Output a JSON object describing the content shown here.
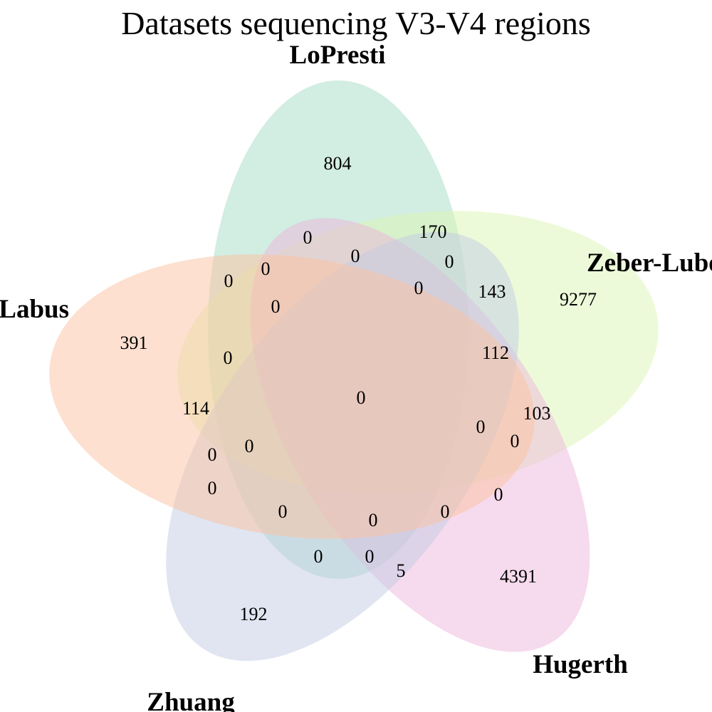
{
  "title": "Datasets sequencing V3-V4 regions",
  "sets": [
    {
      "key": "lopresti",
      "label": "LoPresti",
      "color": "#a6dcc5"
    },
    {
      "key": "zeber",
      "label": "Zeber-Lubecka",
      "color": "#dcf5b3"
    },
    {
      "key": "hugerth",
      "label": "Hugerth",
      "color": "#edb6dc"
    },
    {
      "key": "zhuang",
      "label": "Zhuang",
      "color": "#c2cce4"
    },
    {
      "key": "labus",
      "label": "Labus",
      "color": "#fbc2a0"
    }
  ],
  "counts": [
    {
      "key": "lopresti_only",
      "value": "804"
    },
    {
      "key": "zeber_only",
      "value": "9277"
    },
    {
      "key": "hugerth_only",
      "value": "4391"
    },
    {
      "key": "zhuang_only",
      "value": "192"
    },
    {
      "key": "labus_only",
      "value": "391"
    },
    {
      "key": "r_170",
      "value": "170"
    },
    {
      "key": "r_143",
      "value": "143"
    },
    {
      "key": "r_112",
      "value": "112"
    },
    {
      "key": "r_103",
      "value": "103"
    },
    {
      "key": "r_114",
      "value": "114"
    },
    {
      "key": "r_5",
      "value": "5"
    },
    {
      "key": "center",
      "value": "0"
    },
    {
      "key": "z01",
      "value": "0"
    },
    {
      "key": "z02",
      "value": "0"
    },
    {
      "key": "z03",
      "value": "0"
    },
    {
      "key": "z04",
      "value": "0"
    },
    {
      "key": "z05",
      "value": "0"
    },
    {
      "key": "z06",
      "value": "0"
    },
    {
      "key": "z07",
      "value": "0"
    },
    {
      "key": "z08",
      "value": "0"
    },
    {
      "key": "z09",
      "value": "0"
    },
    {
      "key": "z10",
      "value": "0"
    },
    {
      "key": "z11",
      "value": "0"
    },
    {
      "key": "z12",
      "value": "0"
    },
    {
      "key": "z13",
      "value": "0"
    },
    {
      "key": "z14",
      "value": "0"
    },
    {
      "key": "z15",
      "value": "0"
    },
    {
      "key": "z16",
      "value": "0"
    },
    {
      "key": "z17",
      "value": "0"
    },
    {
      "key": "z18",
      "value": "0"
    },
    {
      "key": "z19",
      "value": "0"
    },
    {
      "key": "z20",
      "value": "0"
    }
  ]
}
